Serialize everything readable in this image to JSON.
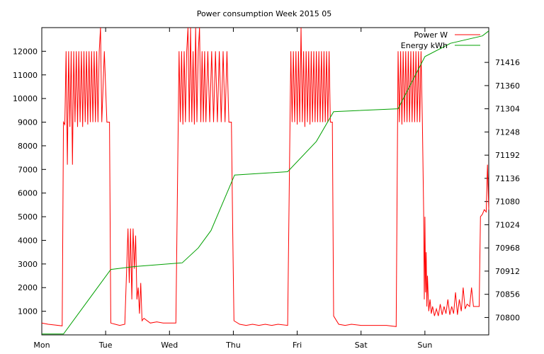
{
  "chart_data": {
    "type": "line",
    "title": "Power consumption Week 2015 05",
    "xlabel": "",
    "ylabel": "",
    "x_categories": [
      "Mon",
      "Tue",
      "Wed",
      "Thu",
      "Fri",
      "Sat",
      "Sun"
    ],
    "xlim": [
      0,
      7
    ],
    "ylim_left": [
      0,
      13000
    ],
    "ylim_right": [
      70758,
      71500
    ],
    "yticks_left": [
      1000,
      2000,
      3000,
      4000,
      5000,
      6000,
      7000,
      8000,
      9000,
      10000,
      11000,
      12000
    ],
    "yticks_right": [
      70800,
      70856,
      70912,
      70968,
      71024,
      71080,
      71136,
      71192,
      71248,
      71304,
      71360,
      71416
    ],
    "legend_position": "top-right",
    "grid": false,
    "series": [
      {
        "name": "Power W",
        "axis": "left",
        "color": "#ff0000",
        "points": [
          [
            0.0,
            500
          ],
          [
            0.1,
            450
          ],
          [
            0.2,
            420
          ],
          [
            0.32,
            380
          ],
          [
            0.34,
            9000
          ],
          [
            0.36,
            8900
          ],
          [
            0.38,
            12000
          ],
          [
            0.4,
            7200
          ],
          [
            0.42,
            12000
          ],
          [
            0.44,
            8800
          ],
          [
            0.46,
            12000
          ],
          [
            0.48,
            7200
          ],
          [
            0.5,
            12000
          ],
          [
            0.52,
            9000
          ],
          [
            0.54,
            12000
          ],
          [
            0.56,
            8800
          ],
          [
            0.58,
            12000
          ],
          [
            0.6,
            9000
          ],
          [
            0.62,
            12000
          ],
          [
            0.64,
            8800
          ],
          [
            0.66,
            12000
          ],
          [
            0.68,
            9000
          ],
          [
            0.7,
            12000
          ],
          [
            0.72,
            8900
          ],
          [
            0.74,
            12000
          ],
          [
            0.76,
            9000
          ],
          [
            0.78,
            12000
          ],
          [
            0.8,
            9000
          ],
          [
            0.82,
            12000
          ],
          [
            0.84,
            9000
          ],
          [
            0.86,
            12000
          ],
          [
            0.88,
            9000
          ],
          [
            0.9,
            12000
          ],
          [
            0.92,
            13000
          ],
          [
            0.94,
            9000
          ],
          [
            0.98,
            12000
          ],
          [
            1.02,
            9000
          ],
          [
            1.06,
            9000
          ],
          [
            1.08,
            500
          ],
          [
            1.15,
            450
          ],
          [
            1.22,
            400
          ],
          [
            1.3,
            450
          ],
          [
            1.35,
            4500
          ],
          [
            1.37,
            2200
          ],
          [
            1.39,
            4500
          ],
          [
            1.41,
            1500
          ],
          [
            1.43,
            4500
          ],
          [
            1.45,
            2800
          ],
          [
            1.47,
            4200
          ],
          [
            1.49,
            1500
          ],
          [
            1.51,
            2000
          ],
          [
            1.53,
            900
          ],
          [
            1.55,
            2200
          ],
          [
            1.57,
            600
          ],
          [
            1.6,
            700
          ],
          [
            1.7,
            500
          ],
          [
            1.8,
            550
          ],
          [
            1.9,
            500
          ],
          [
            2.1,
            500
          ],
          [
            2.15,
            12000
          ],
          [
            2.17,
            9000
          ],
          [
            2.19,
            12000
          ],
          [
            2.21,
            8900
          ],
          [
            2.23,
            12000
          ],
          [
            2.25,
            9000
          ],
          [
            2.27,
            12000
          ],
          [
            2.29,
            13000
          ],
          [
            2.31,
            9000
          ],
          [
            2.33,
            13000
          ],
          [
            2.35,
            9000
          ],
          [
            2.37,
            12000
          ],
          [
            2.39,
            8900
          ],
          [
            2.41,
            13000
          ],
          [
            2.43,
            9000
          ],
          [
            2.45,
            12000
          ],
          [
            2.47,
            13000
          ],
          [
            2.49,
            9000
          ],
          [
            2.51,
            12000
          ],
          [
            2.53,
            9000
          ],
          [
            2.55,
            12000
          ],
          [
            2.57,
            9000
          ],
          [
            2.6,
            12000
          ],
          [
            2.63,
            9000
          ],
          [
            2.66,
            12000
          ],
          [
            2.69,
            9000
          ],
          [
            2.72,
            12000
          ],
          [
            2.75,
            9000
          ],
          [
            2.78,
            12000
          ],
          [
            2.81,
            9000
          ],
          [
            2.84,
            12000
          ],
          [
            2.87,
            9000
          ],
          [
            2.9,
            12000
          ],
          [
            2.93,
            9000
          ],
          [
            2.97,
            9000
          ],
          [
            2.99,
            4500
          ],
          [
            3.01,
            600
          ],
          [
            3.1,
            450
          ],
          [
            3.2,
            400
          ],
          [
            3.3,
            450
          ],
          [
            3.4,
            400
          ],
          [
            3.5,
            450
          ],
          [
            3.6,
            400
          ],
          [
            3.7,
            450
          ],
          [
            3.85,
            400
          ],
          [
            3.9,
            12000
          ],
          [
            3.92,
            9000
          ],
          [
            3.94,
            12000
          ],
          [
            3.96,
            9000
          ],
          [
            3.98,
            12000
          ],
          [
            4.0,
            8900
          ],
          [
            4.02,
            12000
          ],
          [
            4.04,
            9000
          ],
          [
            4.06,
            13000
          ],
          [
            4.08,
            9000
          ],
          [
            4.1,
            12000
          ],
          [
            4.12,
            8800
          ],
          [
            4.14,
            12000
          ],
          [
            4.16,
            9000
          ],
          [
            4.18,
            12000
          ],
          [
            4.2,
            8900
          ],
          [
            4.22,
            12000
          ],
          [
            4.24,
            9000
          ],
          [
            4.26,
            12000
          ],
          [
            4.28,
            9000
          ],
          [
            4.3,
            12000
          ],
          [
            4.32,
            9000
          ],
          [
            4.34,
            12000
          ],
          [
            4.36,
            9000
          ],
          [
            4.38,
            12000
          ],
          [
            4.4,
            9000
          ],
          [
            4.42,
            12000
          ],
          [
            4.44,
            9000
          ],
          [
            4.46,
            12000
          ],
          [
            4.48,
            9000
          ],
          [
            4.5,
            12000
          ],
          [
            4.52,
            9000
          ],
          [
            4.55,
            9000
          ],
          [
            4.57,
            800
          ],
          [
            4.65,
            450
          ],
          [
            4.75,
            400
          ],
          [
            4.85,
            450
          ],
          [
            5.0,
            400
          ],
          [
            5.2,
            400
          ],
          [
            5.4,
            400
          ],
          [
            5.55,
            350
          ],
          [
            5.58,
            12000
          ],
          [
            5.6,
            9000
          ],
          [
            5.62,
            12000
          ],
          [
            5.64,
            8900
          ],
          [
            5.66,
            12000
          ],
          [
            5.68,
            9000
          ],
          [
            5.7,
            12000
          ],
          [
            5.72,
            9000
          ],
          [
            5.74,
            12000
          ],
          [
            5.76,
            9000
          ],
          [
            5.78,
            12000
          ],
          [
            5.8,
            9000
          ],
          [
            5.82,
            12000
          ],
          [
            5.84,
            9000
          ],
          [
            5.86,
            12000
          ],
          [
            5.88,
            9000
          ],
          [
            5.9,
            12000
          ],
          [
            5.92,
            9000
          ],
          [
            5.94,
            12000
          ],
          [
            5.96,
            9000
          ],
          [
            5.98,
            5200
          ],
          [
            5.99,
            1500
          ],
          [
            6.0,
            5000
          ],
          [
            6.01,
            1800
          ],
          [
            6.02,
            3500
          ],
          [
            6.03,
            1200
          ],
          [
            6.04,
            2500
          ],
          [
            6.06,
            1000
          ],
          [
            6.08,
            1500
          ],
          [
            6.1,
            900
          ],
          [
            6.12,
            1200
          ],
          [
            6.15,
            800
          ],
          [
            6.18,
            1100
          ],
          [
            6.21,
            800
          ],
          [
            6.24,
            1300
          ],
          [
            6.27,
            850
          ],
          [
            6.3,
            1200
          ],
          [
            6.33,
            900
          ],
          [
            6.36,
            1500
          ],
          [
            6.39,
            850
          ],
          [
            6.42,
            1200
          ],
          [
            6.45,
            900
          ],
          [
            6.48,
            1800
          ],
          [
            6.51,
            850
          ],
          [
            6.54,
            1500
          ],
          [
            6.57,
            1000
          ],
          [
            6.6,
            2000
          ],
          [
            6.63,
            1100
          ],
          [
            6.66,
            1300
          ],
          [
            6.7,
            1200
          ],
          [
            6.73,
            2000
          ],
          [
            6.76,
            1200
          ],
          [
            6.79,
            1200
          ],
          [
            6.82,
            1200
          ],
          [
            6.85,
            1200
          ],
          [
            6.87,
            5000
          ],
          [
            6.9,
            5100
          ],
          [
            6.93,
            5300
          ],
          [
            6.96,
            5200
          ],
          [
            6.98,
            7200
          ],
          [
            7.0,
            5300
          ]
        ]
      },
      {
        "name": "Energy kWh",
        "axis": "right",
        "color": "#00a000",
        "points": [
          [
            0.0,
            70760
          ],
          [
            0.34,
            70760
          ],
          [
            1.08,
            70916
          ],
          [
            1.45,
            70923
          ],
          [
            2.2,
            70932
          ],
          [
            2.45,
            70968
          ],
          [
            2.65,
            71010
          ],
          [
            3.02,
            71144
          ],
          [
            3.85,
            71152
          ],
          [
            4.3,
            71225
          ],
          [
            4.57,
            71297
          ],
          [
            5.58,
            71304
          ],
          [
            6.0,
            71430
          ],
          [
            6.4,
            71462
          ],
          [
            6.9,
            71480
          ],
          [
            7.0,
            71492
          ]
        ]
      }
    ]
  }
}
